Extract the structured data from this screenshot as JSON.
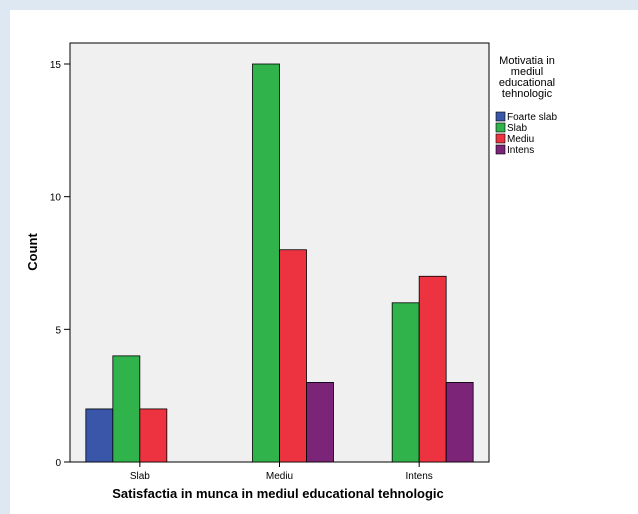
{
  "chart_data": {
    "type": "bar",
    "title": "",
    "xlabel": "Satisfactia in munca in mediul educational tehnologic",
    "ylabel": "Count",
    "categories": [
      "Slab",
      "Mediu",
      "Intens"
    ],
    "ylim": [
      0,
      15.0
    ],
    "yticks": [
      "0",
      "5",
      "10",
      "15"
    ],
    "series": [
      {
        "name": "Foarte slab",
        "color": "#3a56a8",
        "values": [
          2,
          null,
          null
        ]
      },
      {
        "name": "Slab",
        "color": "#2fb34a",
        "values": [
          4,
          15,
          6
        ]
      },
      {
        "name": "Mediu",
        "color": "#ee3340",
        "values": [
          2,
          8,
          7
        ]
      },
      {
        "name": "Intens",
        "color": "#7b2478",
        "values": [
          null,
          3,
          3
        ]
      }
    ],
    "legend": {
      "title_lines": [
        "Motivatia in",
        "mediul",
        "educational",
        "tehnologic"
      ],
      "placement": "right"
    },
    "plot_background": "#f0f0f0",
    "grid": false
  }
}
